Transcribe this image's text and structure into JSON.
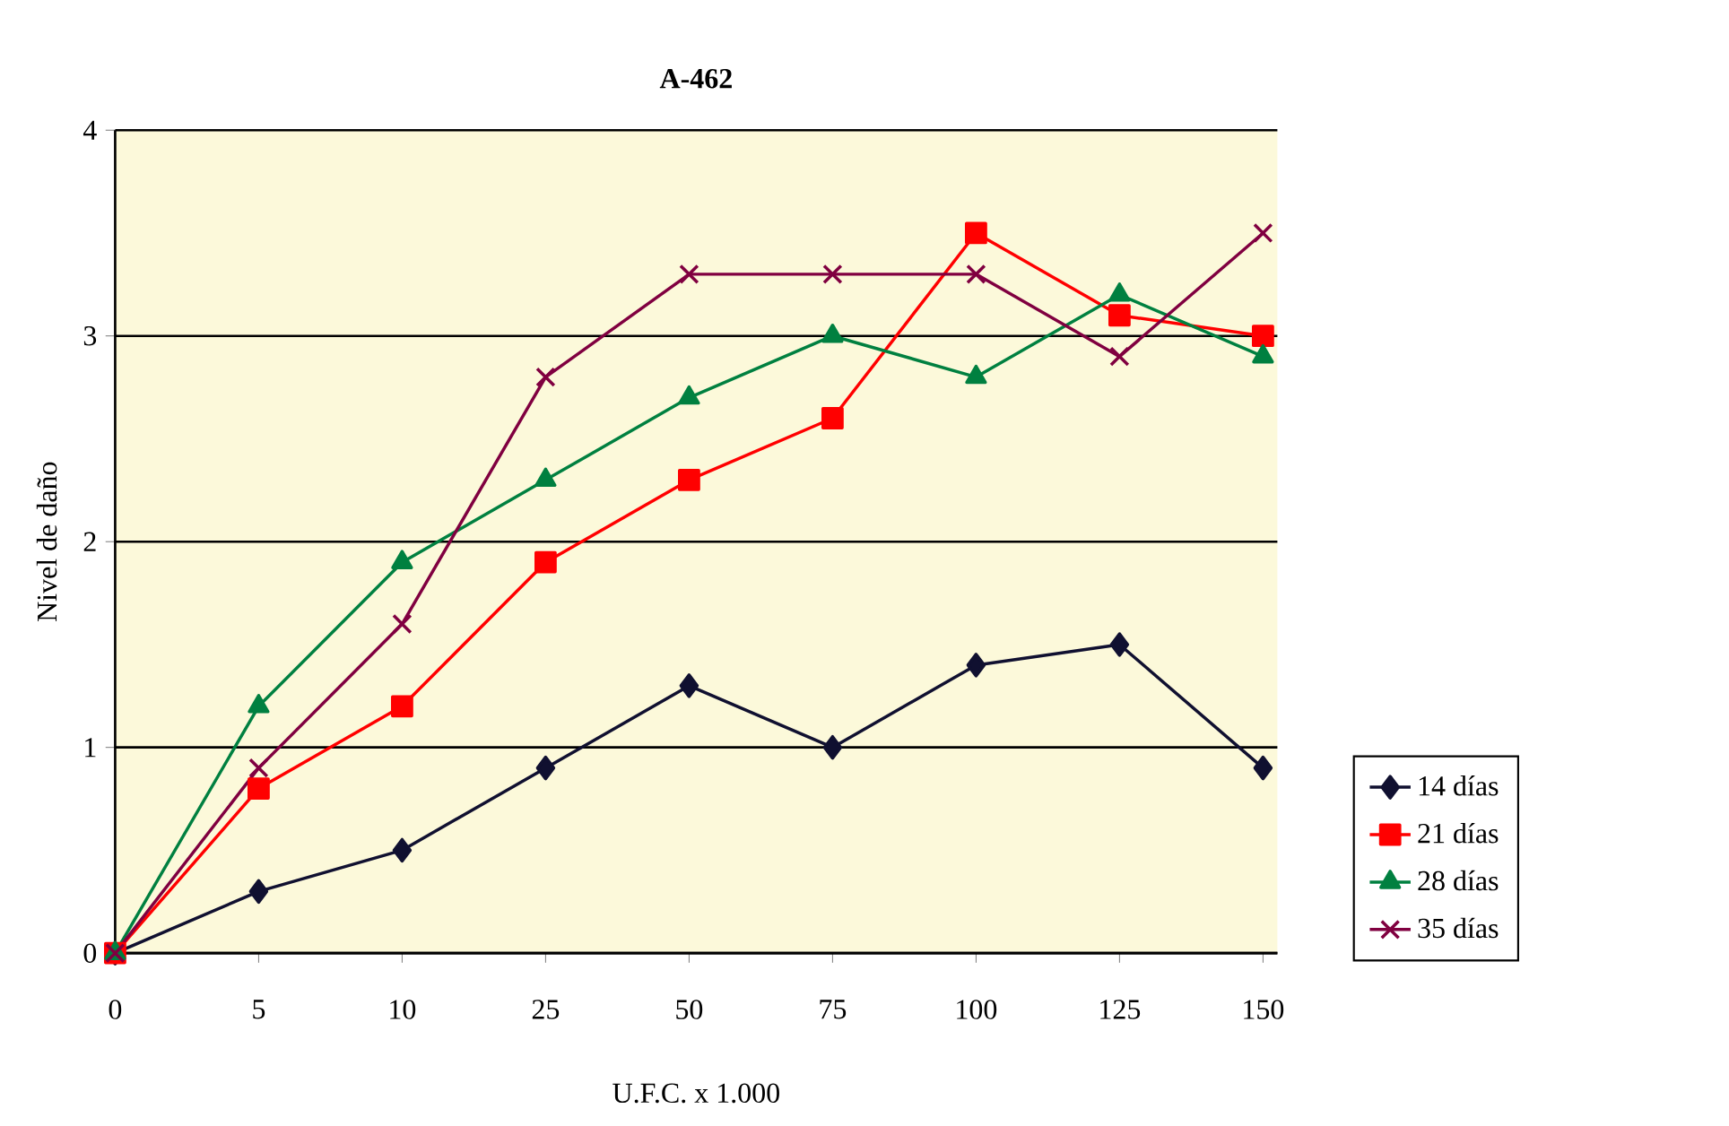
{
  "chart_data": {
    "type": "line",
    "title": "A-462",
    "xlabel": "U.F.C. x 1.000",
    "ylabel": "Nivel de daño",
    "categories": [
      "0",
      "5",
      "10",
      "25",
      "50",
      "75",
      "100",
      "125",
      "150"
    ],
    "series": [
      {
        "name": "14 días",
        "color": "#101030",
        "marker": "diamond",
        "values": [
          0,
          0.3,
          0.5,
          0.9,
          1.3,
          1.0,
          1.4,
          1.5,
          0.9
        ]
      },
      {
        "name": "21 días",
        "color": "#ff0000",
        "marker": "square",
        "values": [
          0,
          0.8,
          1.2,
          1.9,
          2.3,
          2.6,
          3.5,
          3.1,
          3.0
        ]
      },
      {
        "name": "28 días",
        "color": "#008040",
        "marker": "triangle",
        "values": [
          0,
          1.2,
          1.9,
          2.3,
          2.7,
          3.0,
          2.8,
          3.2,
          2.9
        ]
      },
      {
        "name": "35 días",
        "color": "#800040",
        "marker": "cross",
        "values": [
          0,
          0.9,
          1.6,
          2.8,
          3.3,
          3.3,
          3.3,
          2.9,
          3.5
        ]
      }
    ],
    "ylim": [
      0,
      4
    ],
    "yticks": [
      0,
      1,
      2,
      3,
      4
    ],
    "grid": "y",
    "legend": "right"
  }
}
